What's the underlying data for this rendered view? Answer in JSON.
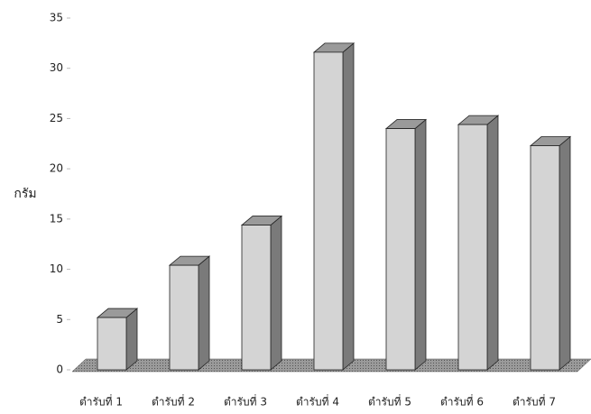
{
  "chart_data": {
    "type": "bar3d",
    "y_label": "กรัม",
    "categories": [
      "ตำรับที่ 1",
      "ตำรับที่ 2",
      "ตำรับที่ 3",
      "ตำรับที่ 4",
      "ตำรับที่ 5",
      "ตำรับที่ 6",
      "ตำรับที่ 7"
    ],
    "values": [
      5.2,
      10.4,
      14.4,
      31.6,
      24,
      24.4,
      22.3
    ],
    "color": "#d4d4d4",
    "ylim": [
      0,
      35
    ],
    "yticks": [
      0,
      5,
      10,
      15,
      20,
      25,
      30,
      35
    ],
    "grid": false
  }
}
